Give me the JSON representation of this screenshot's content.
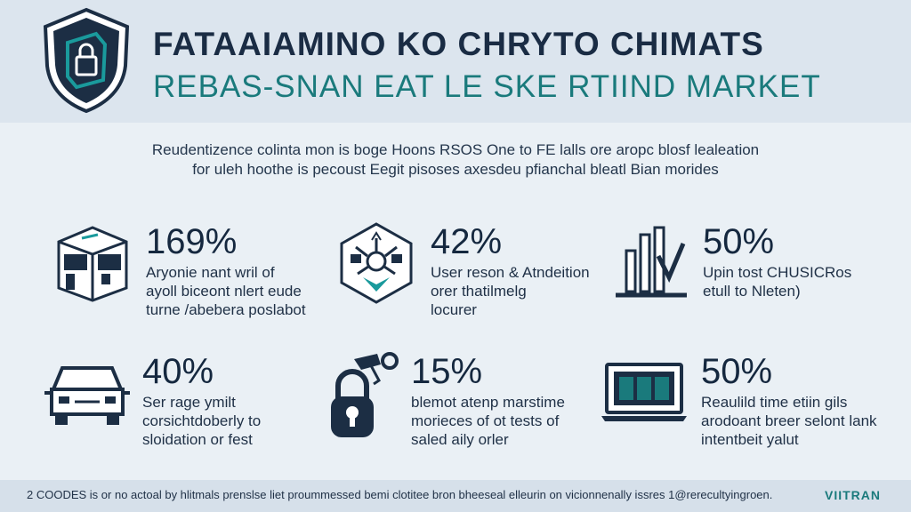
{
  "header": {
    "title": "FATAAIAMINO KO CHRYTO CHIMATS",
    "subtitle": "REBAS-SNAN EAT LE SKE RTIIND MARKET"
  },
  "intro": {
    "line1": "Reudentizence colinta mon is boge Hoons RSOS One to FE lalls ore aropc blosf lealeation",
    "line2": "for uleh hoothe is pecoust Eegit pisoses axesdeu pfianchal bleatl Bian morides"
  },
  "stats": [
    {
      "value": "169%",
      "line1": "Aryonie nant wril of",
      "line2": "ayoll biceont nlert eude",
      "line3": "turne /abebera poslabot",
      "icon": "building-icon"
    },
    {
      "value": "42%",
      "line1": "User reson & Atndeition",
      "line2": "orer thatilmelg",
      "line3": "locurer",
      "icon": "network-hub-icon"
    },
    {
      "value": "50%",
      "line1": "Upin tost CHUSICRos",
      "line2": "etull to Nleten)",
      "line3": "",
      "icon": "bar-chart-down-icon"
    },
    {
      "value": "40%",
      "line1": "Ser rage ymilt",
      "line2": "corsichtdoberly to",
      "line3": "sloidation or fest",
      "icon": "car-icon"
    },
    {
      "value": "15%",
      "line1": "blemot atenp marstime",
      "line2": "morieces of ot tests of",
      "line3": "saled aily orler",
      "icon": "padlock-key-icon"
    },
    {
      "value": "50%",
      "line1": "Reaulild time etiin gils",
      "line2": "arodoant breer selont lank",
      "line3": "intentbeit yalut",
      "icon": "laptop-icon"
    }
  ],
  "footer": {
    "text": "2 COODES is or no actoal by hlitmals prenslse liet proummessed bemi clotitee bron bheeseal elleurin on vicionnenally issres 1@rerecultyingroen.",
    "brand": "VIITRAN"
  },
  "colors": {
    "navy": "#1c2e44",
    "teal": "#1a7a7c",
    "background": "#eaf0f5"
  }
}
